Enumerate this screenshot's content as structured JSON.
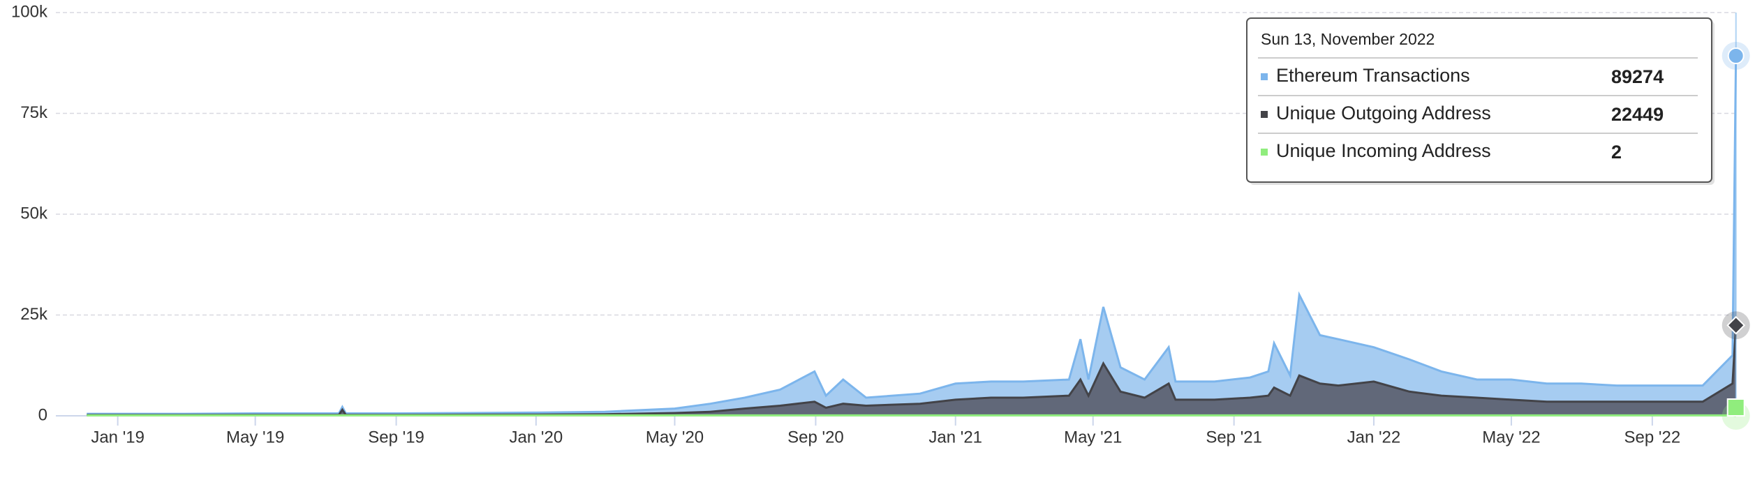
{
  "chart_data": {
    "type": "area",
    "x": [
      "2018-12-05",
      "2019-01-01",
      "2019-03-01",
      "2019-05-01",
      "2019-07-01",
      "2019-07-13",
      "2019-07-16",
      "2019-07-19",
      "2019-09-01",
      "2019-11-01",
      "2020-01-01",
      "2020-03-01",
      "2020-05-01",
      "2020-06-01",
      "2020-07-01",
      "2020-08-01",
      "2020-08-31",
      "2020-09-10",
      "2020-09-25",
      "2020-10-15",
      "2020-12-01",
      "2021-01-01",
      "2021-02-01",
      "2021-03-01",
      "2021-04-10",
      "2021-04-20",
      "2021-04-27",
      "2021-05-10",
      "2021-05-25",
      "2021-06-15",
      "2021-07-06",
      "2021-07-12",
      "2021-08-15",
      "2021-09-15",
      "2021-10-01",
      "2021-10-06",
      "2021-10-20",
      "2021-10-28",
      "2021-11-15",
      "2021-12-01",
      "2022-01-01",
      "2022-02-01",
      "2022-03-01",
      "2022-04-01",
      "2022-05-01",
      "2022-06-01",
      "2022-07-01",
      "2022-08-01",
      "2022-09-01",
      "2022-10-15",
      "2022-11-10",
      "2022-11-13"
    ],
    "series": [
      {
        "name": "Ethereum Transactions",
        "color": "#7cb5ec",
        "fill": "#9cc7f0",
        "values": [
          500,
          500,
          500,
          600,
          600,
          600,
          2200,
          600,
          600,
          700,
          800,
          1000,
          1800,
          3000,
          4500,
          6500,
          11000,
          5000,
          9000,
          4500,
          5500,
          8000,
          8500,
          8500,
          9000,
          19000,
          9000,
          27000,
          12000,
          9000,
          17000,
          8500,
          8500,
          9500,
          11000,
          18000,
          10000,
          30000,
          20000,
          19000,
          17000,
          14000,
          11000,
          9000,
          9000,
          8000,
          8000,
          7500,
          7500,
          7500,
          15000,
          89274
        ]
      },
      {
        "name": "Unique Outgoing Address",
        "color": "#434348",
        "fill": "#5a5d6b",
        "values": [
          200,
          200,
          200,
          250,
          250,
          250,
          1500,
          250,
          250,
          280,
          300,
          400,
          700,
          1000,
          1800,
          2500,
          3500,
          2000,
          3000,
          2500,
          3000,
          4000,
          4500,
          4500,
          5000,
          9000,
          5000,
          13000,
          6000,
          4500,
          8000,
          4000,
          4000,
          4500,
          5000,
          7000,
          5000,
          10000,
          8000,
          7500,
          8500,
          6000,
          5000,
          4500,
          4000,
          3500,
          3500,
          3500,
          3500,
          3500,
          8000,
          22449
        ]
      },
      {
        "name": "Unique Incoming Address",
        "color": "#90ed7d",
        "fill": "#90ed7d",
        "values": [
          100,
          100,
          100,
          100,
          100,
          100,
          100,
          100,
          100,
          100,
          100,
          100,
          100,
          100,
          100,
          100,
          100,
          100,
          100,
          100,
          100,
          100,
          100,
          100,
          100,
          100,
          100,
          100,
          100,
          100,
          100,
          100,
          100,
          100,
          100,
          100,
          100,
          100,
          100,
          100,
          100,
          100,
          100,
          100,
          100,
          100,
          100,
          100,
          100,
          100,
          100,
          2
        ]
      }
    ],
    "xlim": [
      "2018-11-08",
      "2022-11-15"
    ],
    "xticks": [
      {
        "value": "2019-01-01",
        "label": "Jan '19"
      },
      {
        "value": "2019-05-01",
        "label": "May '19"
      },
      {
        "value": "2019-09-01",
        "label": "Sep '19"
      },
      {
        "value": "2020-01-01",
        "label": "Jan '20"
      },
      {
        "value": "2020-05-01",
        "label": "May '20"
      },
      {
        "value": "2020-09-01",
        "label": "Sep '20"
      },
      {
        "value": "2021-01-01",
        "label": "Jan '21"
      },
      {
        "value": "2021-05-01",
        "label": "May '21"
      },
      {
        "value": "2021-09-01",
        "label": "Sep '21"
      },
      {
        "value": "2022-01-01",
        "label": "Jan '22"
      },
      {
        "value": "2022-05-01",
        "label": "May '22"
      },
      {
        "value": "2022-09-01",
        "label": "Sep '22"
      }
    ],
    "ylim": [
      0,
      100000
    ],
    "yticks": [
      0,
      {
        "value": 25000,
        "label": "25k"
      },
      {
        "value": 50000,
        "label": "50k"
      },
      {
        "value": 75000,
        "label": "75k"
      },
      {
        "value": 100000,
        "label": "100k"
      }
    ],
    "grid": true,
    "tooltip": {
      "title": "Sun 13, November 2022"
    }
  }
}
